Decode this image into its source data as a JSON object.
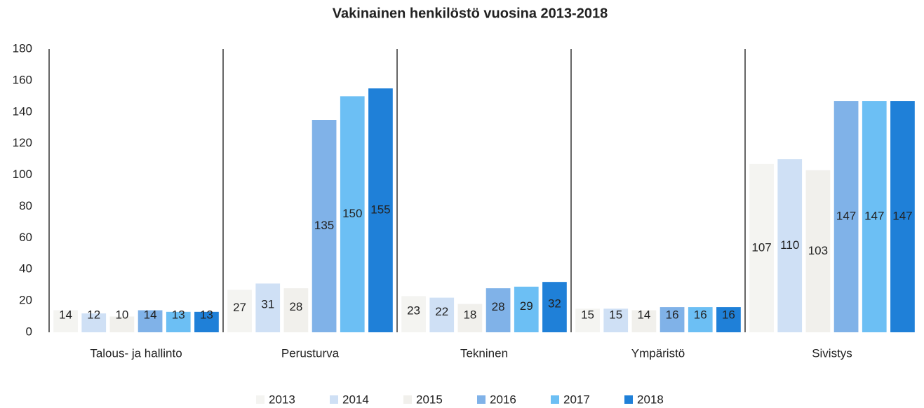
{
  "chart_data": {
    "type": "bar",
    "title": "Vakinainen henkilöstö vuosina 2013-2018",
    "categories": [
      "Talous- ja hallinto",
      "Perusturva",
      "Tekninen",
      "Ympäristö",
      "Sivistys"
    ],
    "series": [
      {
        "name": "2013",
        "color": "#f4f4f1",
        "values": [
          14,
          27,
          23,
          15,
          107
        ]
      },
      {
        "name": "2014",
        "color": "#cfe0f5",
        "values": [
          12,
          31,
          22,
          15,
          110
        ]
      },
      {
        "name": "2015",
        "color": "#f1f0ec",
        "values": [
          10,
          28,
          18,
          14,
          103
        ]
      },
      {
        "name": "2016",
        "color": "#80b2e8",
        "values": [
          14,
          135,
          28,
          16,
          147
        ]
      },
      {
        "name": "2017",
        "color": "#6cbff4",
        "values": [
          13,
          150,
          29,
          16,
          147
        ]
      },
      {
        "name": "2018",
        "color": "#1f80d8",
        "values": [
          13,
          155,
          32,
          16,
          147
        ]
      }
    ],
    "ylim": [
      0,
      180
    ],
    "yticks": [
      0,
      20,
      40,
      60,
      80,
      100,
      120,
      140,
      160,
      180
    ],
    "grid": false
  }
}
